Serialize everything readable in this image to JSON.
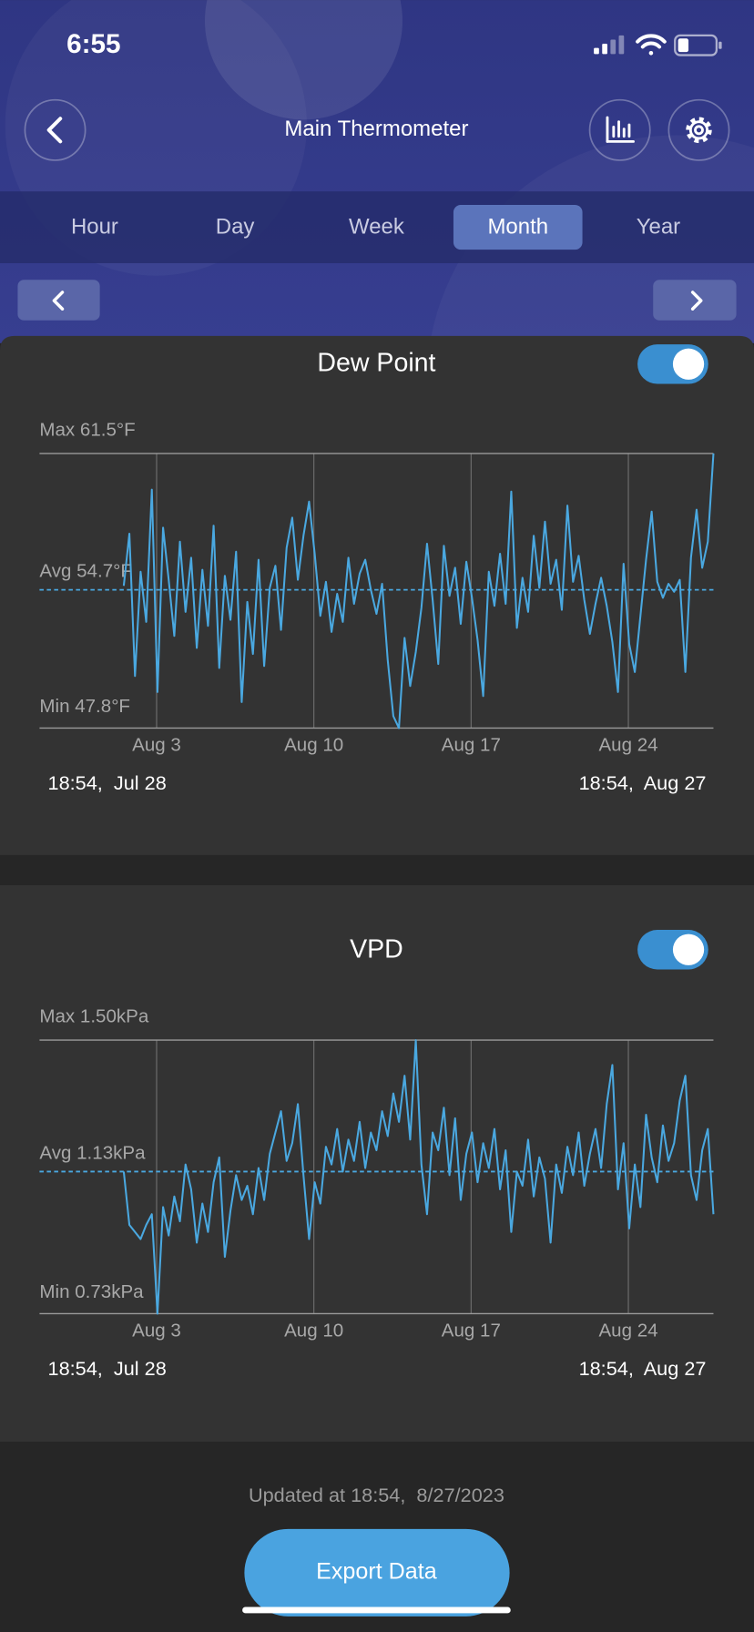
{
  "status_bar": {
    "time": "6:55"
  },
  "header": {
    "title": "Main Thermometer"
  },
  "tabs": {
    "items": [
      "Hour",
      "Day",
      "Week",
      "Month",
      "Year"
    ],
    "selected": 3
  },
  "chart_data": [
    {
      "type": "line",
      "title": "Dew Point",
      "toggle": true,
      "color": "#4aa8e0",
      "xlim": [
        {
          "value": "Jul 28 18:54",
          "label": "18:54,  Jul 28"
        },
        {
          "value": "Aug 27 18:54",
          "label": "18:54,  Aug 27"
        }
      ],
      "xticks": [
        "Aug 3",
        "Aug 10",
        "Aug 17",
        "Aug 24"
      ],
      "ylim": [
        {
          "value": 47.8,
          "label": "Min 47.8°F"
        },
        {
          "value": 61.5,
          "label": "Max 61.5°F"
        }
      ],
      "average": {
        "value": 54.7,
        "label": "Avg 54.7°F"
      },
      "values": [
        null,
        null,
        null,
        null,
        null,
        null,
        null,
        null,
        null,
        null,
        null,
        null,
        null,
        null,
        null,
        54.9,
        57.5,
        50.4,
        55.6,
        53.1,
        59.7,
        49.6,
        57.8,
        55.2,
        52.4,
        57.1,
        53.6,
        56.3,
        51.8,
        55.7,
        52.9,
        57.9,
        50.8,
        55.4,
        53.2,
        56.6,
        49.1,
        54.1,
        51.5,
        56.2,
        50.9,
        54.8,
        55.9,
        52.7,
        56.8,
        58.3,
        55.2,
        57.4,
        59.1,
        56.5,
        53.4,
        55.1,
        52.6,
        54.5,
        53.1,
        56.3,
        54.0,
        55.5,
        56.2,
        54.7,
        53.5,
        55.0,
        51.2,
        48.4,
        47.8,
        52.3,
        49.9,
        51.6,
        53.8,
        57.0,
        54.2,
        51.0,
        56.9,
        54.4,
        55.8,
        53.0,
        56.1,
        54.3,
        52.2,
        49.4,
        55.6,
        53.9,
        56.5,
        54.0,
        59.6,
        52.8,
        55.3,
        53.6,
        57.4,
        54.8,
        58.1,
        55.0,
        56.2,
        53.7,
        58.9,
        55.1,
        56.4,
        54.2,
        52.5,
        54.0,
        55.3,
        53.9,
        52.1,
        49.6,
        56.0,
        52.0,
        50.6,
        53.4,
        56.2,
        58.6,
        55.1,
        54.3,
        55.0,
        54.6,
        55.2,
        50.6,
        56.3,
        58.7,
        55.8,
        57.1,
        61.5
      ]
    },
    {
      "type": "line",
      "title": "VPD",
      "toggle": true,
      "color": "#4aa8e0",
      "xlim": [
        {
          "value": "Jul 28 18:54",
          "label": "18:54,  Jul 28"
        },
        {
          "value": "Aug 27 18:54",
          "label": "18:54,  Aug 27"
        }
      ],
      "xticks": [
        "Aug 3",
        "Aug 10",
        "Aug 17",
        "Aug 24"
      ],
      "ylim": [
        {
          "value": 0.73,
          "label": "Min 0.73kPa"
        },
        {
          "value": 1.5,
          "label": "Max 1.50kPa"
        }
      ],
      "average": {
        "value": 1.13,
        "label": "Avg 1.13kPa"
      },
      "values": [
        null,
        null,
        null,
        null,
        null,
        null,
        null,
        null,
        null,
        null,
        null,
        null,
        null,
        null,
        null,
        1.13,
        0.98,
        0.96,
        0.94,
        0.98,
        1.01,
        0.73,
        1.03,
        0.95,
        1.06,
        0.99,
        1.15,
        1.08,
        0.93,
        1.04,
        0.96,
        1.1,
        1.17,
        0.89,
        1.02,
        1.12,
        1.05,
        1.09,
        1.01,
        1.14,
        1.05,
        1.18,
        1.24,
        1.3,
        1.16,
        1.21,
        1.32,
        1.12,
        0.94,
        1.1,
        1.04,
        1.2,
        1.15,
        1.25,
        1.13,
        1.22,
        1.16,
        1.27,
        1.14,
        1.24,
        1.19,
        1.3,
        1.23,
        1.35,
        1.27,
        1.4,
        1.22,
        1.5,
        1.15,
        1.01,
        1.24,
        1.19,
        1.31,
        1.12,
        1.28,
        1.05,
        1.18,
        1.24,
        1.1,
        1.21,
        1.14,
        1.25,
        1.08,
        1.19,
        0.96,
        1.13,
        1.09,
        1.22,
        1.06,
        1.17,
        1.11,
        0.93,
        1.15,
        1.07,
        1.2,
        1.12,
        1.24,
        1.09,
        1.18,
        1.25,
        1.14,
        1.32,
        1.43,
        1.08,
        1.21,
        0.97,
        1.15,
        1.03,
        1.29,
        1.17,
        1.1,
        1.26,
        1.16,
        1.21,
        1.33,
        1.4,
        1.12,
        1.05,
        1.19,
        1.25,
        1.01
      ]
    }
  ],
  "footer": {
    "updated": "Updated at 18:54,  8/27/2023",
    "button": "Export Data"
  }
}
